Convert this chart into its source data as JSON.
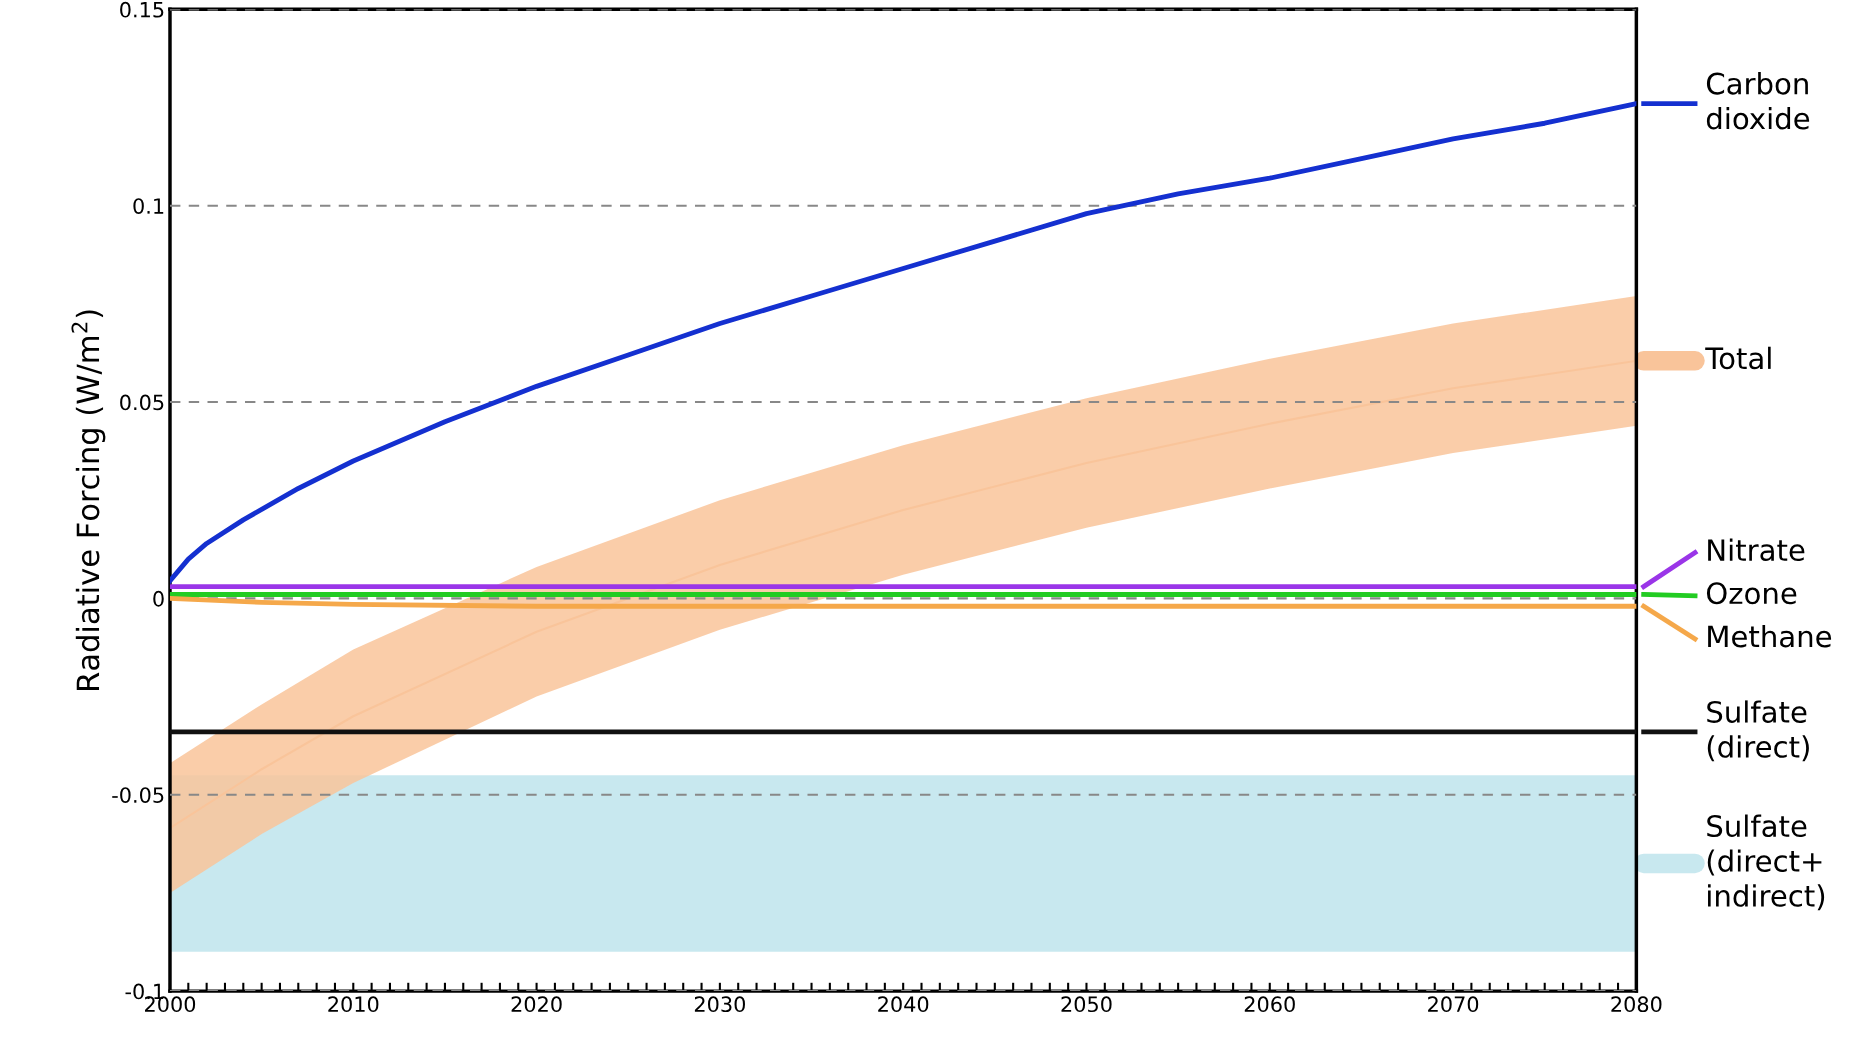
{
  "chart_data": {
    "type": "line",
    "ylabel": "Radiative Forcing (W/m$^{2}$)",
    "xlim": [
      2000,
      2080
    ],
    "ylim": [
      -0.1,
      0.15
    ],
    "xticks": [
      2000,
      {
        "value": 2001,
        "label": null
      },
      {
        "value": 2002,
        "label": null
      },
      {
        "value": 2003,
        "label": null
      },
      {
        "value": 2004,
        "label": null
      },
      {
        "value": 2005,
        "label": null
      },
      {
        "value": 2006,
        "label": null
      },
      {
        "value": 2007,
        "label": null
      },
      {
        "value": 2008,
        "label": null
      },
      {
        "value": 2009,
        "label": null
      },
      2010,
      {
        "value": 2011,
        "label": null
      },
      {
        "value": 2012,
        "label": null
      },
      {
        "value": 2013,
        "label": null
      },
      {
        "value": 2014,
        "label": null
      },
      {
        "value": 2015,
        "label": null
      },
      {
        "value": 2016,
        "label": null
      },
      {
        "value": 2017,
        "label": null
      },
      {
        "value": 2018,
        "label": null
      },
      {
        "value": 2019,
        "label": null
      },
      2020,
      {
        "value": 2021,
        "label": null
      },
      {
        "value": 2022,
        "label": null
      },
      {
        "value": 2023,
        "label": null
      },
      {
        "value": 2024,
        "label": null
      },
      {
        "value": 2025,
        "label": null
      },
      {
        "value": 2026,
        "label": null
      },
      {
        "value": 2027,
        "label": null
      },
      {
        "value": 2028,
        "label": null
      },
      {
        "value": 2029,
        "label": null
      },
      2030,
      {
        "value": 2031,
        "label": null
      },
      {
        "value": 2032,
        "label": null
      },
      {
        "value": 2033,
        "label": null
      },
      {
        "value": 2034,
        "label": null
      },
      {
        "value": 2035,
        "label": null
      },
      {
        "value": 2036,
        "label": null
      },
      {
        "value": 2037,
        "label": null
      },
      {
        "value": 2038,
        "label": null
      },
      {
        "value": 2039,
        "label": null
      },
      2040,
      {
        "value": 2041,
        "label": null
      },
      {
        "value": 2042,
        "label": null
      },
      {
        "value": 2043,
        "label": null
      },
      {
        "value": 2044,
        "label": null
      },
      {
        "value": 2045,
        "label": null
      },
      {
        "value": 2046,
        "label": null
      },
      {
        "value": 2047,
        "label": null
      },
      {
        "value": 2048,
        "label": null
      },
      {
        "value": 2049,
        "label": null
      },
      2050,
      {
        "value": 2051,
        "label": null
      },
      {
        "value": 2052,
        "label": null
      },
      {
        "value": 2053,
        "label": null
      },
      {
        "value": 2054,
        "label": null
      },
      {
        "value": 2055,
        "label": null
      },
      {
        "value": 2056,
        "label": null
      },
      {
        "value": 2057,
        "label": null
      },
      {
        "value": 2058,
        "label": null
      },
      {
        "value": 2059,
        "label": null
      },
      2060,
      {
        "value": 2061,
        "label": null
      },
      {
        "value": 2062,
        "label": null
      },
      {
        "value": 2063,
        "label": null
      },
      {
        "value": 2064,
        "label": null
      },
      {
        "value": 2065,
        "label": null
      },
      {
        "value": 2066,
        "label": null
      },
      {
        "value": 2067,
        "label": null
      },
      {
        "value": 2068,
        "label": null
      },
      {
        "value": 2069,
        "label": null
      },
      2070,
      {
        "value": 2071,
        "label": null
      },
      {
        "value": 2072,
        "label": null
      },
      {
        "value": 2073,
        "label": null
      },
      {
        "value": 2074,
        "label": null
      },
      {
        "value": 2075,
        "label": null
      },
      {
        "value": 2076,
        "label": null
      },
      {
        "value": 2077,
        "label": null
      },
      {
        "value": 2078,
        "label": null
      },
      {
        "value": 2079,
        "label": null
      },
      2080
    ],
    "yticks": [
      {
        "value": -0.1,
        "label": "-0.1"
      },
      {
        "value": -0.05,
        "label": "-0.05"
      },
      0,
      0.05,
      0.1,
      0.15
    ],
    "grid": "y",
    "legend": "right",
    "line_style": "solid",
    "x": [
      2000,
      2005,
      2010,
      2020,
      2030,
      2040,
      2050,
      2060,
      2070,
      2080
    ],
    "series": [
      {
        "name": "Carbon\ndioxide",
        "color": "#1430d0",
        "x": [
          2000,
          2001,
          2002,
          2004,
          2007,
          2010,
          2015,
          2020,
          2025,
          2030,
          2035,
          2040,
          2045,
          2050,
          2055,
          2060,
          2065,
          2070,
          2075,
          2080
        ],
        "values": [
          0.0045,
          0.01,
          0.014,
          0.02,
          0.028,
          0.035,
          0.045,
          0.054,
          0.062,
          0.07,
          0.077,
          0.084,
          0.091,
          0.098,
          0.103,
          0.107,
          0.112,
          0.117,
          0.121,
          0.126
        ]
      },
      {
        "name": "Total",
        "type": "line",
        "color": "#f9c49a",
        "lower": [
          -0.075,
          -0.06,
          -0.047,
          -0.025,
          -0.008,
          0.006,
          0.018,
          0.028,
          0.037,
          0.044
        ],
        "upper": [
          -0.042,
          -0.027,
          -0.013,
          0.008,
          0.025,
          0.039,
          0.051,
          0.061,
          0.07,
          0.077
        ],
        "values": [
          -0.0585,
          -0.0435,
          -0.03,
          -0.0085,
          0.0085,
          0.0225,
          0.0345,
          0.0445,
          0.0535,
          0.0605
        ]
      },
      {
        "name": "Nitrate",
        "color": "#9a35e8",
        "values": [
          0.003,
          0.003,
          0.003,
          0.003,
          0.003,
          0.003,
          0.003,
          0.003,
          0.003,
          0.003
        ]
      },
      {
        "name": "Ozone",
        "color": "#22cc22",
        "values": [
          0.001,
          0.001,
          0.001,
          0.001,
          0.001,
          0.001,
          0.001,
          0.001,
          0.001,
          0.001
        ]
      },
      {
        "name": "Methane",
        "color": "#f5a84a",
        "values": [
          0,
          -0.001,
          -0.0015,
          -0.002,
          -0.002,
          -0.002,
          -0.002,
          -0.002,
          -0.002,
          -0.002
        ]
      },
      {
        "name": "Sulfate\n(direct)",
        "color": "#111111",
        "values": [
          -0.034,
          -0.034,
          -0.034,
          -0.034,
          -0.034,
          -0.034,
          -0.034,
          -0.034,
          -0.034,
          -0.034
        ]
      }
    ],
    "bands": [
      {
        "axis": "y",
        "from": -0.09,
        "to": -0.045,
        "label": "Sulfate\n(direct+\nindirect)",
        "color": "#c8e8ef"
      }
    ]
  }
}
